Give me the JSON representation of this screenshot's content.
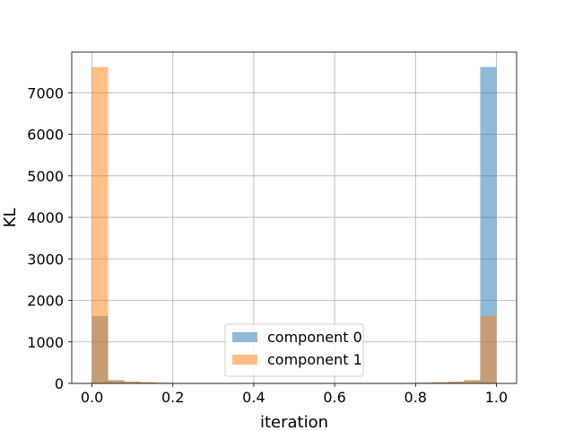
{
  "chart_data": {
    "type": "bar",
    "title": "",
    "xlabel": "iteration",
    "ylabel": "KL",
    "xlim": [
      -0.05,
      1.05
    ],
    "ylim": [
      0,
      7980
    ],
    "bin_width": 0.04,
    "bin_left_edges": [
      0.0,
      0.04,
      0.08,
      0.12,
      0.16,
      0.2,
      0.24,
      0.28,
      0.32,
      0.36,
      0.4,
      0.44,
      0.48,
      0.52,
      0.56,
      0.6,
      0.64,
      0.68,
      0.72,
      0.76,
      0.8,
      0.84,
      0.88,
      0.92,
      0.96
    ],
    "x_ticks": [
      "0.0",
      "0.2",
      "0.4",
      "0.6",
      "0.8",
      "1.0"
    ],
    "x_tick_values": [
      0.0,
      0.2,
      0.4,
      0.6,
      0.8,
      1.0
    ],
    "y_ticks": [
      "0",
      "1000",
      "2000",
      "3000",
      "4000",
      "5000",
      "6000",
      "7000"
    ],
    "y_tick_values": [
      0,
      1000,
      2000,
      3000,
      4000,
      5000,
      6000,
      7000
    ],
    "grid": true,
    "legend_position": "lower-center",
    "series": [
      {
        "name": "component 0",
        "color": "#1f77b4",
        "alpha": 0.5,
        "values": [
          1620,
          80,
          40,
          25,
          15,
          10,
          8,
          6,
          5,
          4,
          4,
          3,
          3,
          3,
          4,
          4,
          5,
          6,
          8,
          10,
          15,
          30,
          40,
          75,
          7620
        ]
      },
      {
        "name": "component 1",
        "color": "#ff7f0e",
        "alpha": 0.5,
        "values": [
          7620,
          75,
          40,
          30,
          15,
          10,
          8,
          6,
          5,
          4,
          4,
          3,
          3,
          3,
          4,
          4,
          5,
          6,
          8,
          10,
          15,
          25,
          40,
          80,
          1620
        ]
      }
    ]
  }
}
